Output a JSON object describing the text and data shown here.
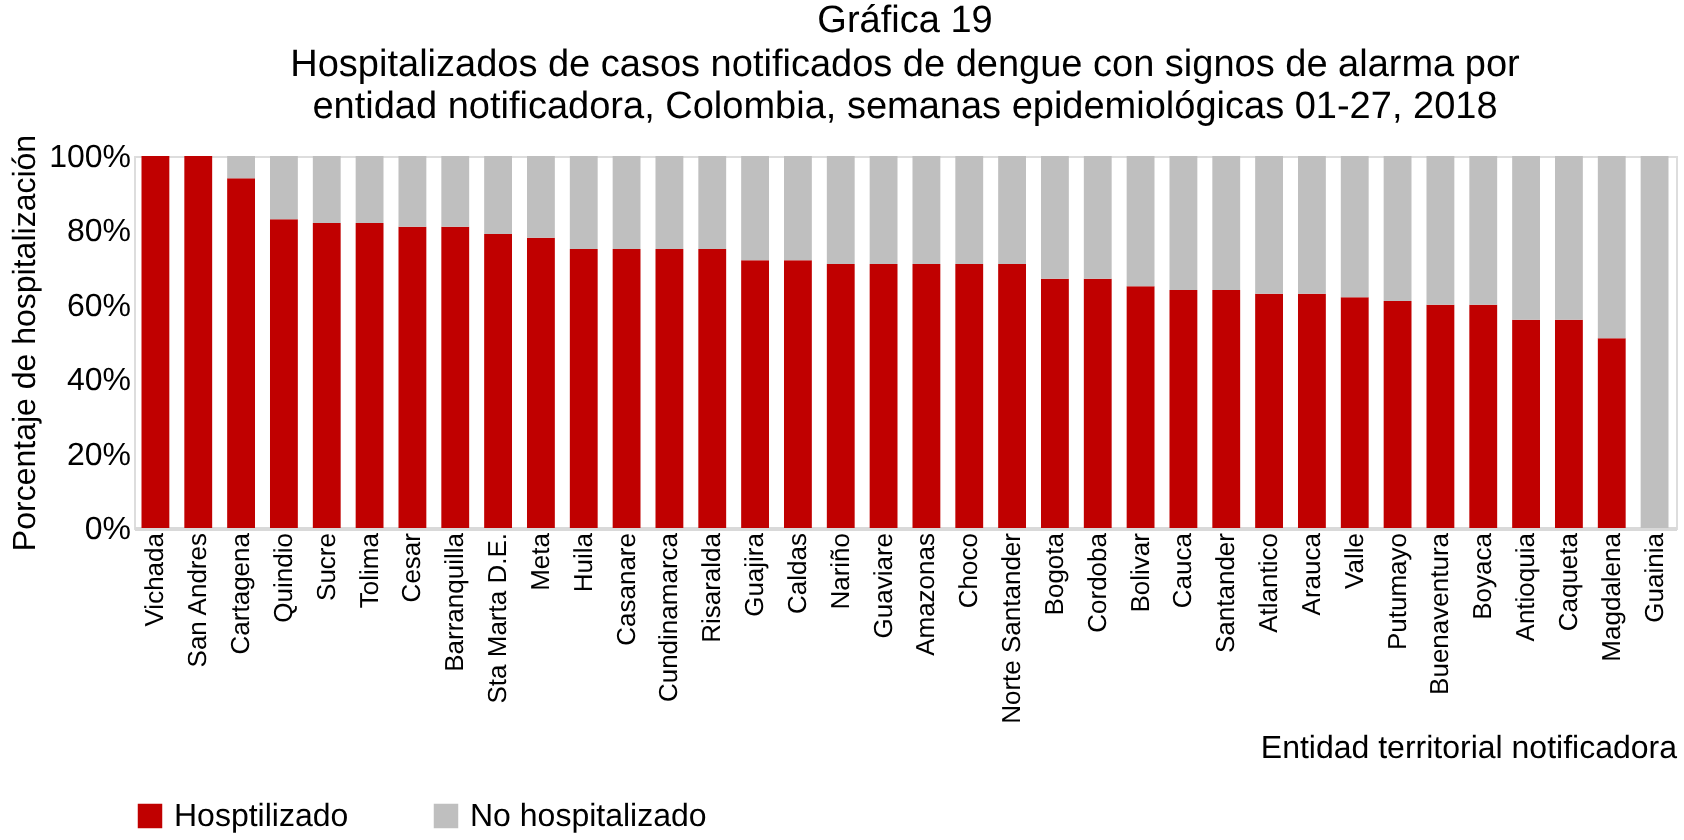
{
  "chart_data": {
    "type": "bar",
    "title": "Gráfica 19",
    "subtitle": "Hospitalizados de casos notificados de dengue con signos de alarma por entidad notificadora, Colombia, semanas epidemiológicas 01-27, 2018",
    "xlabel": "Entidad territorial notificadora",
    "ylabel": "Porcentaje de hospitalización",
    "categories": [
      "Vichada",
      "San Andres",
      "Cartagena",
      "Quindio",
      "Sucre",
      "Tolima",
      "Cesar",
      "Barranquilla",
      "Sta Marta D.E.",
      "Meta",
      "Huila",
      "Casanare",
      "Cundinamarca",
      "Risaralda",
      "Guajira",
      "Caldas",
      "Nariño",
      "Guaviare",
      "Amazonas",
      "Choco",
      "Norte Santander",
      "Bogota",
      "Cordoba",
      "Bolivar",
      "Cauca",
      "Santander",
      "Atlantico",
      "Arauca",
      "Valle",
      "Putumayo",
      "Buenaventura",
      "Boyaca",
      "Antioquia",
      "Caqueta",
      "Magdalena",
      "Guainia"
    ],
    "stacked": true,
    "series": [
      {
        "name": "Hosptilizado",
        "color": "#c00000",
        "values": [
          100,
          100,
          94,
          83,
          82,
          82,
          81,
          81,
          79,
          78,
          75,
          75,
          75,
          75,
          72,
          72,
          71,
          71,
          71,
          71,
          71,
          67,
          67,
          65,
          64,
          64,
          63,
          63,
          62,
          61,
          60,
          60,
          56,
          56,
          51,
          0
        ]
      },
      {
        "name": "No hospitalizado",
        "color": "#bfbfbf",
        "values": [
          0,
          0,
          6,
          17,
          18,
          18,
          19,
          19,
          21,
          22,
          25,
          25,
          25,
          25,
          28,
          28,
          29,
          29,
          29,
          29,
          29,
          33,
          33,
          35,
          36,
          36,
          37,
          37,
          38,
          39,
          40,
          40,
          44,
          44,
          49,
          100
        ]
      }
    ],
    "ylim": [
      0,
      100
    ],
    "yticks": [
      {
        "value": 0,
        "label": "0%"
      },
      {
        "value": 20,
        "label": "20%"
      },
      {
        "value": 40,
        "label": "40%"
      },
      {
        "value": 60,
        "label": "60%"
      },
      {
        "value": 80,
        "label": "80%"
      },
      {
        "value": 100,
        "label": "100%"
      }
    ],
    "grid": false,
    "legend": "bottom left"
  }
}
